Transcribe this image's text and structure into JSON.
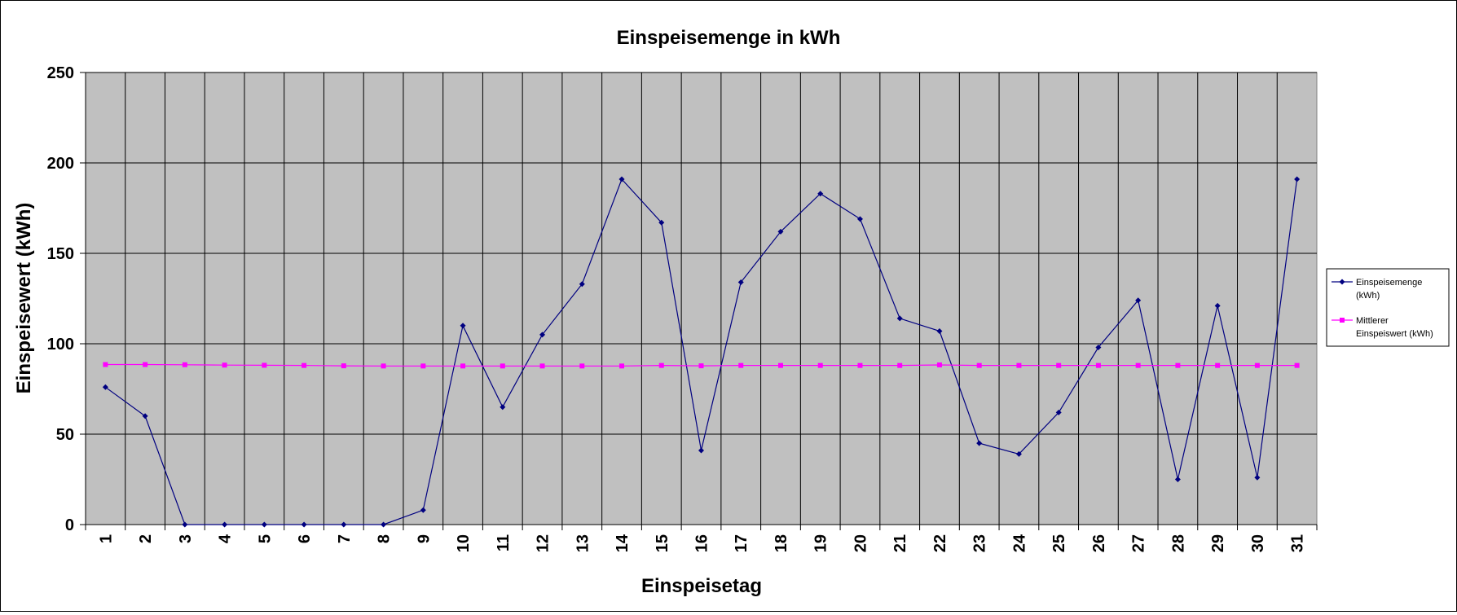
{
  "chart_data": {
    "type": "line",
    "title": "Einspeisemenge in kWh",
    "xlabel": "Einspeisetag",
    "ylabel": "Einspeisewert  (kWh)",
    "ylim": [
      0,
      250
    ],
    "yticks": [
      0,
      50,
      100,
      150,
      200,
      250
    ],
    "categories": [
      "1",
      "2",
      "3",
      "4",
      "5",
      "6",
      "7",
      "8",
      "9",
      "10",
      "11",
      "12",
      "13",
      "14",
      "15",
      "16",
      "17",
      "18",
      "19",
      "20",
      "21",
      "22",
      "23",
      "24",
      "25",
      "26",
      "27",
      "28",
      "29",
      "30",
      "31"
    ],
    "grid": true,
    "legend_position": "right",
    "series": [
      {
        "name": "Einspeisemenge (kWh)",
        "legend_lines": [
          "Einspeisemenge",
          "(kWh)"
        ],
        "color": "#000080",
        "marker": "diamond",
        "values": [
          76,
          60,
          0,
          0,
          0,
          0,
          0,
          0,
          8,
          110,
          65,
          105,
          133,
          191,
          167,
          41,
          134,
          162,
          183,
          169,
          114,
          107,
          45,
          39,
          62,
          98,
          124,
          25,
          121,
          26,
          191
        ]
      },
      {
        "name": "Mittlerer Einspeiswert (kWh)",
        "legend_lines": [
          "Mittlerer",
          "Einspeiswert (kWh)"
        ],
        "color": "#FF00FF",
        "marker": "square",
        "values": [
          88.5,
          88.5,
          88.4,
          88.2,
          88.1,
          88.0,
          87.8,
          87.7,
          87.7,
          87.7,
          87.7,
          87.7,
          87.7,
          87.7,
          88.0,
          87.8,
          88.0,
          88.0,
          88.0,
          88.0,
          88.0,
          88.3,
          88.0,
          88.0,
          88.0,
          88.0,
          88.0,
          88.0,
          88.0,
          88.0,
          88.0
        ]
      }
    ]
  }
}
